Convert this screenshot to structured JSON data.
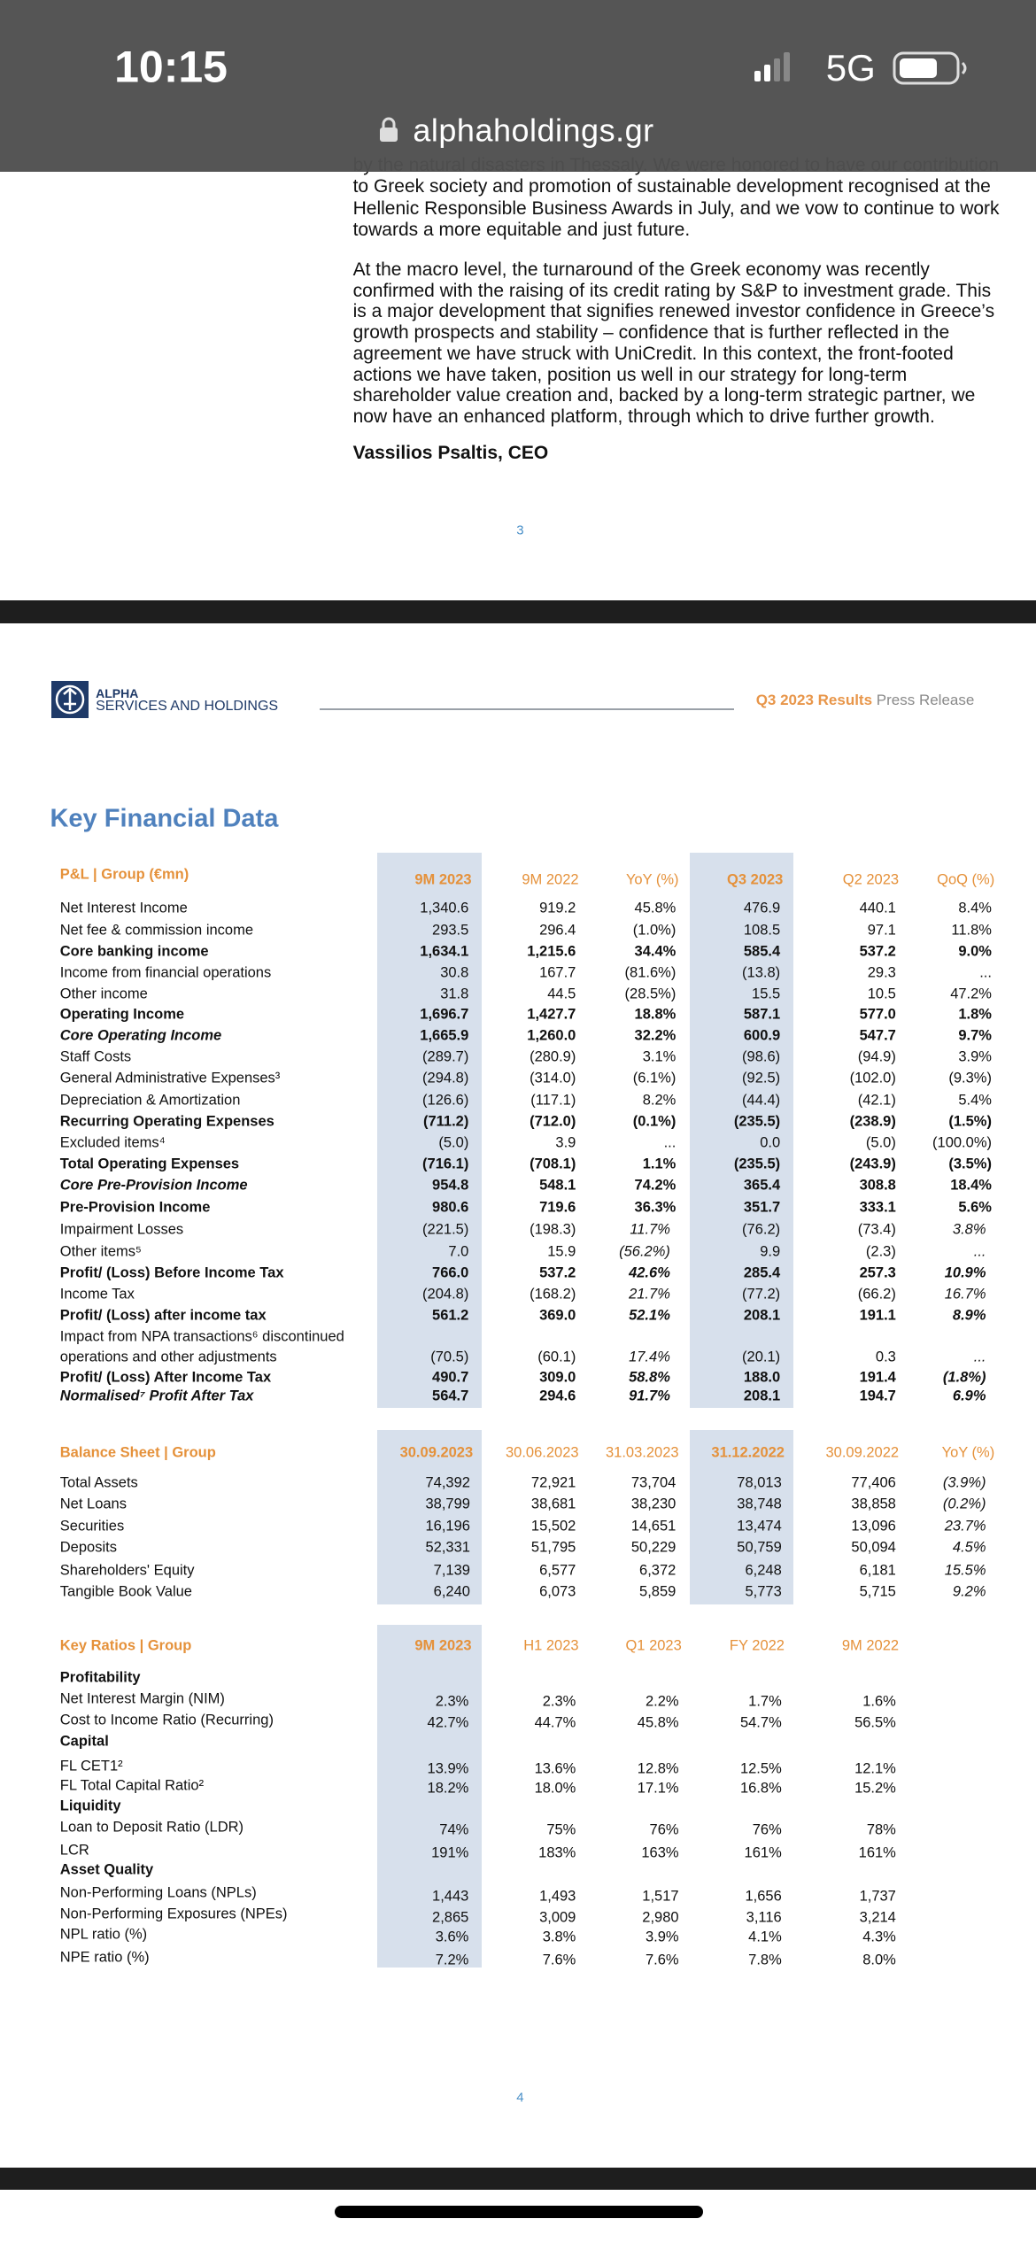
{
  "status_bar": {
    "time": "10:15",
    "network": "5G"
  },
  "browser": {
    "url": "alphaholdings.gr"
  },
  "page3": {
    "paragraphs": [
      [
        "by the natural disasters in Thessaly. We were honored to have our contribution",
        "to Greek society and promotion of sustainable development recognised at the",
        "Hellenic Responsible Business Awards in July, and we vow to continue to work",
        "towards a more equitable and just future."
      ],
      [
        "At the macro level, the turnaround of the Greek economy was recently",
        "confirmed with the raising of its credit rating by S&P to investment grade. This",
        "is a major development that signifies renewed investor confidence in Greece’s",
        "growth prospects and stability – confidence that is further reflected in the",
        "agreement we have struck with UniCredit. In this context, the front-footed",
        "actions we have taken, position us well in our strategy for long-term",
        "shareholder value creation and, backed by a long-term strategic partner, we",
        "now have an enhanced platform, through which to drive further growth."
      ]
    ],
    "signature": "Vassilios Psaltis, CEO",
    "page_number": "3"
  },
  "page4": {
    "logo": {
      "line1": "ALPHA",
      "line2": "SERVICES AND HOLDINGS"
    },
    "header": {
      "highlight": "Q3 2023 Results",
      "text": "Press Release"
    },
    "title": "Key Financial Data",
    "tables": [
      {
        "title": "P&L | Group (€mn)",
        "columns": [
          "9M 2023",
          "9M 2022",
          "YoY (%)",
          "Q3 2023",
          "Q2 2023",
          "QoQ (%)"
        ],
        "shaded_columns": [
          0,
          3
        ],
        "change_columns": [
          2,
          5
        ],
        "rows": [
          {
            "label": "Net Interest Income",
            "values": [
              "1,340.6",
              "919.2",
              "45.8%",
              "476.9",
              "440.1",
              "8.4%"
            ]
          },
          {
            "label": "Net fee & commission income",
            "values": [
              "293.5",
              "296.4",
              "(1.0%)",
              "108.5",
              "97.1",
              "11.8%"
            ]
          },
          {
            "label": "Core banking income",
            "style": "bold",
            "values": [
              "1,634.1",
              "1,215.6",
              "34.4%",
              "585.4",
              "537.2",
              "9.0%"
            ]
          },
          {
            "label": "Income from financial operations",
            "values": [
              "30.8",
              "167.7",
              "(81.6%)",
              "(13.8)",
              "29.3",
              "..."
            ]
          },
          {
            "label": "Other income",
            "values": [
              "31.8",
              "44.5",
              "(28.5%)",
              "15.5",
              "10.5",
              "47.2%"
            ]
          },
          {
            "label": "Operating Income",
            "style": "bold",
            "values": [
              "1,696.7",
              "1,427.7",
              "18.8%",
              "587.1",
              "577.0",
              "1.8%"
            ]
          },
          {
            "label": "Core Operating Income",
            "style": "bold-italic",
            "values": [
              "1,665.9",
              "1,260.0",
              "32.2%",
              "600.9",
              "547.7",
              "9.7%"
            ]
          },
          {
            "label": "Staff Costs",
            "values": [
              "(289.7)",
              "(280.9)",
              "3.1%",
              "(98.6)",
              "(94.9)",
              "3.9%"
            ]
          },
          {
            "label": "General Administrative Expenses³",
            "values": [
              "(294.8)",
              "(314.0)",
              "(6.1%)",
              "(92.5)",
              "(102.0)",
              "(9.3%)"
            ]
          },
          {
            "label": "Depreciation & Amortization",
            "values": [
              "(126.6)",
              "(117.1)",
              "8.2%",
              "(44.4)",
              "(42.1)",
              "5.4%"
            ]
          },
          {
            "label": "Recurring Operating Expenses",
            "style": "bold",
            "values": [
              "(711.2)",
              "(712.0)",
              "(0.1%)",
              "(235.5)",
              "(238.9)",
              "(1.5%)"
            ]
          },
          {
            "label": "Excluded items⁴",
            "values": [
              "(5.0)",
              "3.9",
              "...",
              "0.0",
              "(5.0)",
              "(100.0%)"
            ]
          },
          {
            "label": "Total Operating Expenses",
            "style": "bold",
            "values": [
              "(716.1)",
              "(708.1)",
              "1.1%",
              "(235.5)",
              "(243.9)",
              "(3.5%)"
            ]
          },
          {
            "label": "Core Pre-Provision Income",
            "style": "bold-italic",
            "values": [
              "954.8",
              "548.1",
              "74.2%",
              "365.4",
              "308.8",
              "18.4%"
            ]
          },
          {
            "label": "Pre-Provision Income",
            "style": "bold",
            "values": [
              "980.6",
              "719.6",
              "36.3%",
              "351.7",
              "333.1",
              "5.6%"
            ]
          },
          {
            "label": "Impairment Losses",
            "italic_change": true,
            "values": [
              "(221.5)",
              "(198.3)",
              "11.7%",
              "(76.2)",
              "(73.4)",
              "3.8%"
            ]
          },
          {
            "label": "Other items⁵",
            "italic_change": true,
            "values": [
              "7.0",
              "15.9",
              "(56.2%)",
              "9.9",
              "(2.3)",
              "..."
            ]
          },
          {
            "label": "Profit/ (Loss) Before Income Tax",
            "style": "bold",
            "italic_change": true,
            "values": [
              "766.0",
              "537.2",
              "42.6%",
              "285.4",
              "257.3",
              "10.9%"
            ]
          },
          {
            "label": "Income Tax",
            "italic_change": true,
            "values": [
              "(204.8)",
              "(168.2)",
              "21.7%",
              "(77.2)",
              "(66.2)",
              "16.7%"
            ]
          },
          {
            "label": "Profit/ (Loss) after income tax",
            "style": "bold",
            "italic_change": true,
            "values": [
              "561.2",
              "369.0",
              "52.1%",
              "208.1",
              "191.1",
              "8.9%"
            ]
          },
          {
            "label": [
              "Impact from NPA transactions⁶ discontinued",
              "operations and other adjustments"
            ],
            "italic_change": true,
            "values": [
              "(70.5)",
              "(60.1)",
              "17.4%",
              "(20.1)",
              "0.3",
              "..."
            ]
          },
          {
            "label": "Profit/ (Loss) After Income Tax",
            "style": "bold",
            "italic_change": true,
            "values": [
              "490.7",
              "309.0",
              "58.8%",
              "188.0",
              "191.4",
              "(1.8%)"
            ]
          },
          {
            "label": "Normalised⁷ Profit After Tax",
            "style": "bold-italic",
            "italic_change": true,
            "values": [
              "564.7",
              "294.6",
              "91.7%",
              "208.1",
              "194.7",
              "6.9%"
            ]
          }
        ]
      },
      {
        "title": "Balance Sheet | Group",
        "columns": [
          "30.09.2023",
          "30.06.2023",
          "31.03.2023",
          "31.12.2022",
          "30.09.2022",
          "YoY (%)"
        ],
        "shaded_columns": [
          0,
          3
        ],
        "change_columns": [
          5
        ],
        "rows": [
          {
            "label": "Total Assets",
            "italic_change": true,
            "values": [
              "74,392",
              "72,921",
              "73,704",
              "78,013",
              "77,406",
              "(3.9%)"
            ]
          },
          {
            "label": "Net Loans",
            "italic_change": true,
            "values": [
              "38,799",
              "38,681",
              "38,230",
              "38,748",
              "38,858",
              "(0.2%)"
            ]
          },
          {
            "label": "Securities",
            "italic_change": true,
            "values": [
              "16,196",
              "15,502",
              "14,651",
              "13,474",
              "13,096",
              "23.7%"
            ]
          },
          {
            "label": "Deposits",
            "italic_change": true,
            "values": [
              "52,331",
              "51,795",
              "50,229",
              "50,759",
              "50,094",
              "4.5%"
            ]
          },
          {
            "label": "Shareholders' Equity",
            "italic_change": true,
            "values": [
              "7,139",
              "6,577",
              "6,372",
              "6,248",
              "6,181",
              "15.5%"
            ]
          },
          {
            "label": "Tangible Book Value",
            "italic_change": true,
            "values": [
              "6,240",
              "6,073",
              "5,859",
              "5,773",
              "5,715",
              "9.2%"
            ]
          }
        ]
      },
      {
        "title": "Key Ratios | Group",
        "columns": [
          "9M 2023",
          "H1 2023",
          "Q1 2023",
          "FY 2022",
          "9M 2022"
        ],
        "shaded_columns": [
          0
        ],
        "change_columns": [],
        "rows": [
          {
            "label": "Profitability",
            "style": "bold"
          },
          {
            "label": "Net Interest Margin (NIM)",
            "values": [
              "2.3%",
              "2.3%",
              "2.2%",
              "1.7%",
              "1.6%"
            ]
          },
          {
            "label": "Cost to Income Ratio (Recurring)",
            "values": [
              "42.7%",
              "44.7%",
              "45.8%",
              "54.7%",
              "56.5%"
            ]
          },
          {
            "label": "Capital",
            "style": "bold"
          },
          {
            "label": "FL CET1²",
            "values": [
              "13.9%",
              "13.6%",
              "12.8%",
              "12.5%",
              "12.1%"
            ]
          },
          {
            "label": "FL Total Capital Ratio²",
            "values": [
              "18.2%",
              "18.0%",
              "17.1%",
              "16.8%",
              "15.2%"
            ]
          },
          {
            "label": "Liquidity",
            "style": "bold"
          },
          {
            "label": "Loan to Deposit Ratio (LDR)",
            "values": [
              "74%",
              "75%",
              "76%",
              "76%",
              "78%"
            ]
          },
          {
            "label": "LCR",
            "values": [
              "191%",
              "183%",
              "163%",
              "161%",
              "161%"
            ]
          },
          {
            "label": "Asset Quality",
            "style": "bold"
          },
          {
            "label": "Non-Performing Loans (NPLs)",
            "values": [
              "1,443",
              "1,493",
              "1,517",
              "1,656",
              "1,737"
            ]
          },
          {
            "label": "Non-Performing Exposures (NPEs)",
            "values": [
              "2,865",
              "3,009",
              "2,980",
              "3,116",
              "3,214"
            ]
          },
          {
            "label": "NPL ratio (%)",
            "values": [
              "3.6%",
              "3.8%",
              "3.9%",
              "4.1%",
              "4.3%"
            ]
          },
          {
            "label": "NPE ratio (%)",
            "values": [
              "7.2%",
              "7.6%",
              "7.6%",
              "7.8%",
              "8.0%"
            ]
          }
        ]
      }
    ],
    "page_number": "4"
  }
}
